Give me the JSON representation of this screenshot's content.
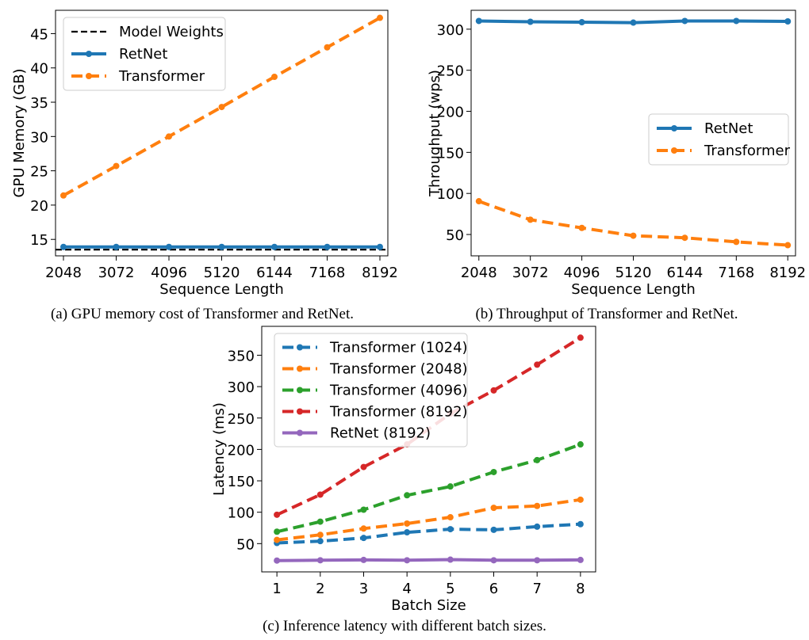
{
  "captions": {
    "a": "(a) GPU memory cost of Transformer and RetNet.",
    "b": "(b) Throughput of Transformer and RetNet.",
    "c": "(c) Inference latency with different batch sizes."
  },
  "chart_data": [
    {
      "id": "a",
      "type": "line",
      "xlabel": "Sequence Length",
      "ylabel": "GPU Memory (GB)",
      "x": [
        2048,
        3072,
        4096,
        5120,
        6144,
        7168,
        8192
      ],
      "xlim": [
        1894,
        8346
      ],
      "ylim": [
        12.6,
        48.4
      ],
      "yticks": [
        15,
        20,
        25,
        30,
        35,
        40,
        45
      ],
      "legend": "top-left",
      "hline": {
        "name": "Model Weights",
        "value": 13.5,
        "color": "#000000"
      },
      "series": [
        {
          "name": "RetNet",
          "color": "#1f77b4",
          "dashed": false,
          "values": [
            13.9,
            13.9,
            13.9,
            13.9,
            13.9,
            13.9,
            13.9
          ]
        },
        {
          "name": "Transformer",
          "color": "#ff7f0e",
          "dashed": true,
          "values": [
            21.4,
            25.7,
            30.0,
            34.3,
            38.7,
            43.0,
            47.3
          ]
        }
      ]
    },
    {
      "id": "b",
      "type": "line",
      "xlabel": "Sequence Length",
      "ylabel": "Throughput (wps)",
      "x": [
        2048,
        3072,
        4096,
        5120,
        6144,
        7168,
        8192
      ],
      "xlim": [
        1894,
        8346
      ],
      "ylim": [
        24,
        323
      ],
      "yticks": [
        50,
        100,
        150,
        200,
        250,
        300
      ],
      "legend": "center-right",
      "series": [
        {
          "name": "RetNet",
          "color": "#1f77b4",
          "dashed": false,
          "values": [
            310,
            309,
            308.5,
            308,
            310,
            310,
            309.5
          ]
        },
        {
          "name": "Transformer",
          "color": "#ff7f0e",
          "dashed": true,
          "values": [
            90.5,
            68,
            58,
            48.5,
            46,
            41,
            37
          ]
        }
      ]
    },
    {
      "id": "c",
      "type": "line",
      "xlabel": "Batch Size",
      "ylabel": "Latency (ms)",
      "x": [
        1,
        2,
        3,
        4,
        5,
        6,
        7,
        8
      ],
      "xlim": [
        0.65,
        8.35
      ],
      "ylim": [
        5,
        396
      ],
      "yticks": [
        50,
        100,
        150,
        200,
        250,
        300,
        350
      ],
      "legend": "top-left",
      "series": [
        {
          "name": "Transformer (1024)",
          "color": "#1f77b4",
          "dashed": true,
          "values": [
            51,
            54,
            59,
            68,
            73,
            72,
            77,
            81
          ]
        },
        {
          "name": "Transformer (2048)",
          "color": "#ff7f0e",
          "dashed": true,
          "values": [
            56,
            64,
            74,
            82,
            92,
            107,
            110,
            120
          ]
        },
        {
          "name": "Transformer (4096)",
          "color": "#2ca02c",
          "dashed": true,
          "values": [
            69,
            85,
            104,
            127,
            141,
            164,
            183,
            208
          ]
        },
        {
          "name": "Transformer (8192)",
          "color": "#d62728",
          "dashed": true,
          "values": [
            96,
            128,
            172,
            208,
            257,
            294,
            335,
            378
          ]
        },
        {
          "name": "RetNet (8192)",
          "color": "#9467bd",
          "dashed": false,
          "values": [
            23,
            23.5,
            24,
            23.5,
            24.5,
            23.5,
            23.5,
            24
          ]
        }
      ]
    }
  ]
}
